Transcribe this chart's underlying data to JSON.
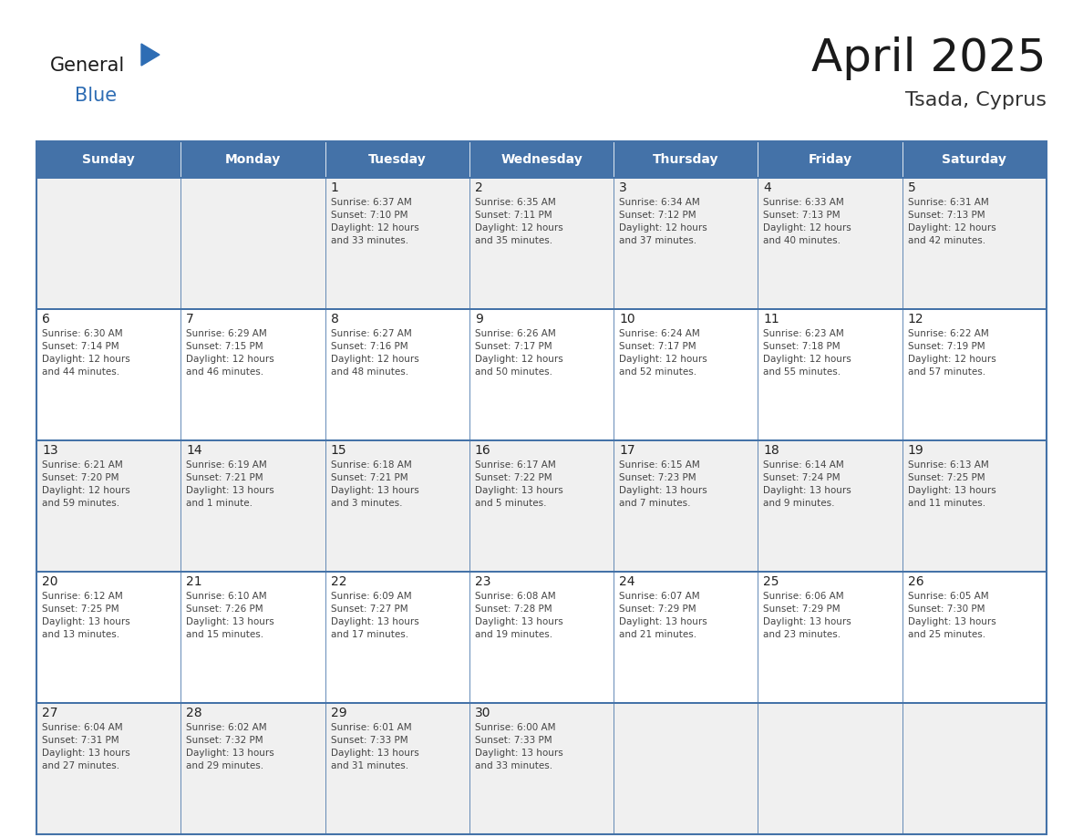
{
  "title": "April 2025",
  "subtitle": "Tsada, Cyprus",
  "days_of_week": [
    "Sunday",
    "Monday",
    "Tuesday",
    "Wednesday",
    "Thursday",
    "Friday",
    "Saturday"
  ],
  "header_bg": "#4472a8",
  "header_text": "#ffffff",
  "cell_bg_even": "#f0f0f0",
  "cell_bg_odd": "#ffffff",
  "cell_border": "#4472a8",
  "day_num_color": "#222222",
  "cell_text_color": "#444444",
  "logo_general_color": "#1a1a1a",
  "logo_blue_color": "#2e6db4",
  "title_color": "#1a1a1a",
  "subtitle_color": "#333333",
  "weeks": [
    [
      {
        "day": null,
        "text": ""
      },
      {
        "day": null,
        "text": ""
      },
      {
        "day": 1,
        "text": "Sunrise: 6:37 AM\nSunset: 7:10 PM\nDaylight: 12 hours\nand 33 minutes."
      },
      {
        "day": 2,
        "text": "Sunrise: 6:35 AM\nSunset: 7:11 PM\nDaylight: 12 hours\nand 35 minutes."
      },
      {
        "day": 3,
        "text": "Sunrise: 6:34 AM\nSunset: 7:12 PM\nDaylight: 12 hours\nand 37 minutes."
      },
      {
        "day": 4,
        "text": "Sunrise: 6:33 AM\nSunset: 7:13 PM\nDaylight: 12 hours\nand 40 minutes."
      },
      {
        "day": 5,
        "text": "Sunrise: 6:31 AM\nSunset: 7:13 PM\nDaylight: 12 hours\nand 42 minutes."
      }
    ],
    [
      {
        "day": 6,
        "text": "Sunrise: 6:30 AM\nSunset: 7:14 PM\nDaylight: 12 hours\nand 44 minutes."
      },
      {
        "day": 7,
        "text": "Sunrise: 6:29 AM\nSunset: 7:15 PM\nDaylight: 12 hours\nand 46 minutes."
      },
      {
        "day": 8,
        "text": "Sunrise: 6:27 AM\nSunset: 7:16 PM\nDaylight: 12 hours\nand 48 minutes."
      },
      {
        "day": 9,
        "text": "Sunrise: 6:26 AM\nSunset: 7:17 PM\nDaylight: 12 hours\nand 50 minutes."
      },
      {
        "day": 10,
        "text": "Sunrise: 6:24 AM\nSunset: 7:17 PM\nDaylight: 12 hours\nand 52 minutes."
      },
      {
        "day": 11,
        "text": "Sunrise: 6:23 AM\nSunset: 7:18 PM\nDaylight: 12 hours\nand 55 minutes."
      },
      {
        "day": 12,
        "text": "Sunrise: 6:22 AM\nSunset: 7:19 PM\nDaylight: 12 hours\nand 57 minutes."
      }
    ],
    [
      {
        "day": 13,
        "text": "Sunrise: 6:21 AM\nSunset: 7:20 PM\nDaylight: 12 hours\nand 59 minutes."
      },
      {
        "day": 14,
        "text": "Sunrise: 6:19 AM\nSunset: 7:21 PM\nDaylight: 13 hours\nand 1 minute."
      },
      {
        "day": 15,
        "text": "Sunrise: 6:18 AM\nSunset: 7:21 PM\nDaylight: 13 hours\nand 3 minutes."
      },
      {
        "day": 16,
        "text": "Sunrise: 6:17 AM\nSunset: 7:22 PM\nDaylight: 13 hours\nand 5 minutes."
      },
      {
        "day": 17,
        "text": "Sunrise: 6:15 AM\nSunset: 7:23 PM\nDaylight: 13 hours\nand 7 minutes."
      },
      {
        "day": 18,
        "text": "Sunrise: 6:14 AM\nSunset: 7:24 PM\nDaylight: 13 hours\nand 9 minutes."
      },
      {
        "day": 19,
        "text": "Sunrise: 6:13 AM\nSunset: 7:25 PM\nDaylight: 13 hours\nand 11 minutes."
      }
    ],
    [
      {
        "day": 20,
        "text": "Sunrise: 6:12 AM\nSunset: 7:25 PM\nDaylight: 13 hours\nand 13 minutes."
      },
      {
        "day": 21,
        "text": "Sunrise: 6:10 AM\nSunset: 7:26 PM\nDaylight: 13 hours\nand 15 minutes."
      },
      {
        "day": 22,
        "text": "Sunrise: 6:09 AM\nSunset: 7:27 PM\nDaylight: 13 hours\nand 17 minutes."
      },
      {
        "day": 23,
        "text": "Sunrise: 6:08 AM\nSunset: 7:28 PM\nDaylight: 13 hours\nand 19 minutes."
      },
      {
        "day": 24,
        "text": "Sunrise: 6:07 AM\nSunset: 7:29 PM\nDaylight: 13 hours\nand 21 minutes."
      },
      {
        "day": 25,
        "text": "Sunrise: 6:06 AM\nSunset: 7:29 PM\nDaylight: 13 hours\nand 23 minutes."
      },
      {
        "day": 26,
        "text": "Sunrise: 6:05 AM\nSunset: 7:30 PM\nDaylight: 13 hours\nand 25 minutes."
      }
    ],
    [
      {
        "day": 27,
        "text": "Sunrise: 6:04 AM\nSunset: 7:31 PM\nDaylight: 13 hours\nand 27 minutes."
      },
      {
        "day": 28,
        "text": "Sunrise: 6:02 AM\nSunset: 7:32 PM\nDaylight: 13 hours\nand 29 minutes."
      },
      {
        "day": 29,
        "text": "Sunrise: 6:01 AM\nSunset: 7:33 PM\nDaylight: 13 hours\nand 31 minutes."
      },
      {
        "day": 30,
        "text": "Sunrise: 6:00 AM\nSunset: 7:33 PM\nDaylight: 13 hours\nand 33 minutes."
      },
      {
        "day": null,
        "text": ""
      },
      {
        "day": null,
        "text": ""
      },
      {
        "day": null,
        "text": ""
      }
    ]
  ]
}
